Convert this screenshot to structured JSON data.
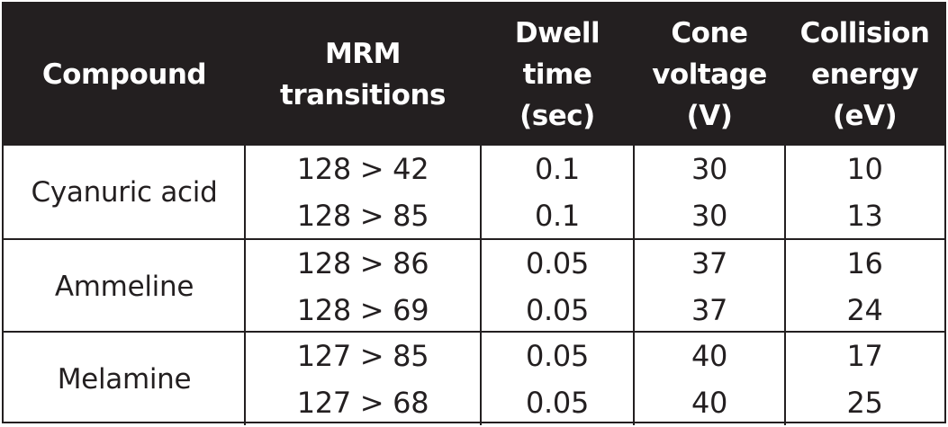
{
  "headers": [
    "Compound",
    "MRM\ntransitions",
    "Dwell\ntime\n(sec)",
    "Cone\nvoltage\n(V)",
    "Collision\nenergy\n(eV)"
  ],
  "groups": [
    {
      "compound": "Cyanuric acid",
      "rows": [
        {
          "transition": "128 > 42",
          "dwell": "0.1",
          "cone": "30",
          "collision": "10"
        },
        {
          "transition": "128 > 85",
          "dwell": "0.1",
          "cone": "30",
          "collision": "13"
        }
      ]
    },
    {
      "compound": "Ammeline",
      "rows": [
        {
          "transition": "128 > 86",
          "dwell": "0.05",
          "cone": "37",
          "collision": "16"
        },
        {
          "transition": "128 > 69",
          "dwell": "0.05",
          "cone": "37",
          "collision": "24"
        }
      ]
    },
    {
      "compound": "Melamine",
      "rows": [
        {
          "transition": "127 > 85",
          "dwell": "0.05",
          "cone": "40",
          "collision": "17"
        },
        {
          "transition": "127 > 68",
          "dwell": "0.05",
          "cone": "40",
          "collision": "25"
        }
      ]
    }
  ]
}
